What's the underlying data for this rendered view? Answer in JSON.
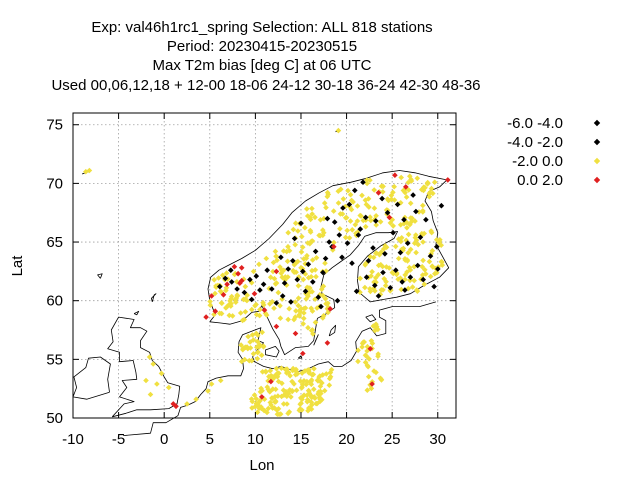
{
  "chart_data": {
    "type": "scatter",
    "title_lines": [
      "Exp: val46h1rc1_spring   Selection: ALL    818 stations",
      "Period: 20230415-20230515",
      "Max T2m bias [deg C] at  06 UTC",
      "Used  00,06,12,18  + 12-00 18-06 24-12 30-18 36-24 42-30 48-36"
    ],
    "xlabel": "Lon",
    "ylabel": "Lat",
    "xlim": [
      -10,
      32
    ],
    "ylim": [
      50,
      76
    ],
    "xticks": [
      -10,
      -5,
      0,
      5,
      10,
      15,
      20,
      25,
      30
    ],
    "yticks": [
      50,
      55,
      60,
      65,
      70,
      75
    ],
    "grid": true,
    "legend_position": "top-right-outside",
    "series": [
      {
        "name": "-6.0 -4.0",
        "color": "#000000"
      },
      {
        "name": "-4.0 -2.0",
        "color": "#000000"
      },
      {
        "name": "-2.0 0.0",
        "color": "#f0e040"
      },
      {
        "name": "0.0 2.0",
        "color": "#e02020"
      }
    ],
    "points_red": [
      [
        1.0,
        51.2
      ],
      [
        1.3,
        51.0
      ],
      [
        4.6,
        58.6
      ],
      [
        5.2,
        60.4
      ],
      [
        5.6,
        59.1
      ],
      [
        6.5,
        60.5
      ],
      [
        6.9,
        61.4
      ],
      [
        7.7,
        62.9
      ],
      [
        8.1,
        62.3
      ],
      [
        8.5,
        62.8
      ],
      [
        8.3,
        61.5
      ],
      [
        9.9,
        60.6
      ],
      [
        11.0,
        59.2
      ],
      [
        11.7,
        53.1
      ],
      [
        12.3,
        57.8
      ],
      [
        14.4,
        57.2
      ],
      [
        15.2,
        55.5
      ],
      [
        17.9,
        56.4
      ],
      [
        18.2,
        59.3
      ],
      [
        22.6,
        55.9
      ],
      [
        22.8,
        52.9
      ],
      [
        10.7,
        51.8
      ],
      [
        23.5,
        69.2
      ],
      [
        25.3,
        70.7
      ],
      [
        26.5,
        69.7
      ],
      [
        31.1,
        70.3
      ],
      [
        18.6,
        64.6
      ],
      [
        24.7,
        67.1
      ],
      [
        8.5,
        61.7
      ],
      [
        12.3,
        62.5
      ]
    ]
  }
}
